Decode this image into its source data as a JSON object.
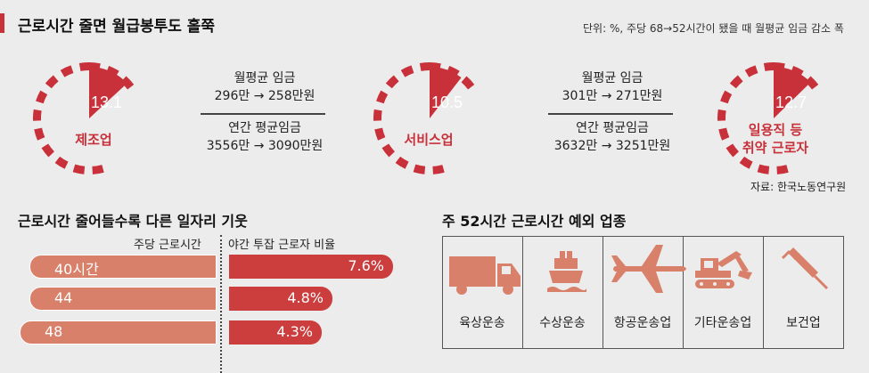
{
  "title": "근로시간 줄면 월급봉투도 홀쭉",
  "unit_note": "단위: %, 주당 68→52시간이 됐을 때 월평균 임금 감소 폭",
  "source": "자료: 한국노동연구원",
  "colors": {
    "accent": "#c8313a",
    "bar_light": "#d9806a",
    "bar_dark": "#cc3d3d"
  },
  "chart_data": [
    {
      "type": "pie",
      "title": "근로시간 줄면 월급봉투도 홀쭉",
      "unit": "%",
      "slices": [
        {
          "name": "제조업",
          "value": 13.1,
          "value_label": "13.1"
        },
        {
          "name": "서비스업",
          "value": 10.5,
          "value_label": "10.5"
        },
        {
          "name": "일용직 등 취약 근로자",
          "value": 12.7,
          "value_label": "12.7",
          "label_lines": [
            "일용직 등",
            "취약 근로자"
          ]
        }
      ]
    },
    {
      "type": "bar",
      "title": "근로시간 줄어들수록 다른 일자리 기웃",
      "xlabel": "주당 근로시간",
      "ylabel": "야간 투잡 근로자 비율",
      "categories": [
        "40시간",
        "44",
        "48"
      ],
      "values": [
        7.6,
        4.8,
        4.3
      ],
      "value_labels": [
        "7.6%",
        "4.8%",
        "4.3%"
      ]
    }
  ],
  "wage_stats": [
    {
      "monthly_label": "월평균 임금",
      "monthly_change": "296만 → 258만원",
      "annual_label": "연간 평균임금",
      "annual_change": "3556만 → 3090만원"
    },
    {
      "monthly_label": "월평균 임금",
      "monthly_change": "301만 → 271만원",
      "annual_label": "연간 평균임금",
      "annual_change": "3632만 → 3251만원"
    }
  ],
  "exceptions": {
    "title": "주 52시간 근로시간 예외 업종",
    "items": [
      {
        "label": "육상운송",
        "icon": "truck-icon"
      },
      {
        "label": "수상운송",
        "icon": "ship-icon"
      },
      {
        "label": "항공운송업",
        "icon": "airplane-icon"
      },
      {
        "label": "기타운송업",
        "icon": "excavator-icon"
      },
      {
        "label": "보건업",
        "icon": "syringe-icon"
      }
    ]
  }
}
